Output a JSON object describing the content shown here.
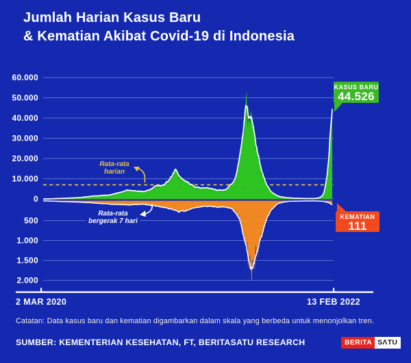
{
  "title": {
    "line1": "Jumlah Harian Kasus Baru",
    "line2": "& Kematian Akibat Covid-19 di Indonesia"
  },
  "colors": {
    "bg": "#1428b0",
    "grid": "#5b6fd6",
    "cases_fill": "#2ec81c",
    "cases_badge": "#3cb728",
    "deaths_fill": "#f78b1e",
    "deaths_badge": "#f24a1e",
    "avg_line": "#e9c53d",
    "ma_line": "#ffffff",
    "note_text": "#f3efe4",
    "logo_red": "#e6231c",
    "logo_text_dark": "#15151a"
  },
  "badges": {
    "cases": {
      "label": "KASUS BARU",
      "value": "44.526"
    },
    "deaths": {
      "label": "KEMATIAN",
      "value": "111"
    }
  },
  "annotations": {
    "daily_avg": {
      "line1": "Rata-rata",
      "line2": "harian"
    },
    "moving_avg": {
      "line1": "Rata-rata",
      "line2": "bergerak 7 hari"
    }
  },
  "footer": {
    "note": "Catatan: Data kasus baru dan kematian digambarkan dalam skala yang berbeda untuk menonjolkan tren.",
    "source": "SUMBER: KEMENTERIAN KESEHATAN, FT, BERITASATU RESEARCH",
    "logo": {
      "part1": "BERITA",
      "part2": "SΛTU"
    }
  },
  "chart_data": {
    "type": "area",
    "title": "Jumlah Harian Kasus Baru & Kematian Akibat Covid-19 di Indonesia",
    "x_range": [
      "2020-03-02",
      "2022-02-13"
    ],
    "x_tick_labels": [
      "2 MAR 2020",
      "13 FEB 2022"
    ],
    "grid": true,
    "y_axis_cases": {
      "range": [
        0,
        60000
      ],
      "ticks": [
        {
          "label": "60.000",
          "value": 60000
        },
        {
          "label": "50.000",
          "value": 50000
        },
        {
          "label": "40.000",
          "value": 40000
        },
        {
          "label": "30.000",
          "value": 30000
        },
        {
          "label": "20.000",
          "value": 20000
        },
        {
          "label": "10.000",
          "value": 10000
        },
        {
          "label": "0",
          "value": 0
        }
      ]
    },
    "y_axis_deaths": {
      "range": [
        0,
        2250
      ],
      "ticks": [
        {
          "label": "500",
          "value": 500
        },
        {
          "label": "1.000",
          "value": 1000
        },
        {
          "label": "1.500",
          "value": 1500
        },
        {
          "label": "2.000",
          "value": 2000
        }
      ]
    },
    "average_line": {
      "label": "Rata-rata harian",
      "value": 7000
    },
    "moving_average_label": "Rata-rata bergerak 7 hari",
    "series": [
      {
        "name": "Kasus Baru",
        "direction": "up",
        "last_value": 44526,
        "points": [
          [
            "2020-03-02",
            5
          ],
          [
            "2020-03-20",
            60
          ],
          [
            "2020-04-10",
            250
          ],
          [
            "2020-05-01",
            400
          ],
          [
            "2020-05-20",
            550
          ],
          [
            "2020-06-10",
            900
          ],
          [
            "2020-07-01",
            1400
          ],
          [
            "2020-07-20",
            1800
          ],
          [
            "2020-08-10",
            1900
          ],
          [
            "2020-09-01",
            2900
          ],
          [
            "2020-09-25",
            4300
          ],
          [
            "2020-10-15",
            4100
          ],
          [
            "2020-11-01",
            3600
          ],
          [
            "2020-11-20",
            4700
          ],
          [
            "2020-12-05",
            6800
          ],
          [
            "2020-12-20",
            6900
          ],
          [
            "2021-01-05",
            9000
          ],
          [
            "2021-01-16",
            13000
          ],
          [
            "2021-01-24",
            14200
          ],
          [
            "2021-02-05",
            10500
          ],
          [
            "2021-02-20",
            8500
          ],
          [
            "2021-03-10",
            6300
          ],
          [
            "2021-04-01",
            5400
          ],
          [
            "2021-04-20",
            5300
          ],
          [
            "2021-05-10",
            4500
          ],
          [
            "2021-05-20",
            4300
          ],
          [
            "2021-06-01",
            5800
          ],
          [
            "2021-06-13",
            8800
          ],
          [
            "2021-06-22",
            12500
          ],
          [
            "2021-07-01",
            21000
          ],
          [
            "2021-07-08",
            33000
          ],
          [
            "2021-07-15",
            50000
          ],
          [
            "2021-07-19",
            46000
          ],
          [
            "2021-07-25",
            43000
          ],
          [
            "2021-08-02",
            34000
          ],
          [
            "2021-08-10",
            26000
          ],
          [
            "2021-08-20",
            16000
          ],
          [
            "2021-09-01",
            8500
          ],
          [
            "2021-09-15",
            3700
          ],
          [
            "2021-10-01",
            1600
          ],
          [
            "2021-10-15",
            900
          ],
          [
            "2021-11-01",
            500
          ],
          [
            "2021-11-20",
            350
          ],
          [
            "2021-12-10",
            230
          ],
          [
            "2021-12-28",
            200
          ],
          [
            "2022-01-08",
            400
          ],
          [
            "2022-01-16",
            900
          ],
          [
            "2022-01-23",
            2700
          ],
          [
            "2022-01-29",
            8000
          ],
          [
            "2022-02-03",
            17000
          ],
          [
            "2022-02-07",
            27000
          ],
          [
            "2022-02-10",
            38000
          ],
          [
            "2022-02-13",
            44526
          ]
        ]
      },
      {
        "name": "Kematian",
        "direction": "down",
        "last_value": 111,
        "points": [
          [
            "2020-03-02",
            2
          ],
          [
            "2020-04-01",
            15
          ],
          [
            "2020-05-01",
            25
          ],
          [
            "2020-06-01",
            38
          ],
          [
            "2020-07-01",
            55
          ],
          [
            "2020-08-01",
            75
          ],
          [
            "2020-09-01",
            100
          ],
          [
            "2020-10-01",
            105
          ],
          [
            "2020-11-01",
            90
          ],
          [
            "2020-12-01",
            125
          ],
          [
            "2020-12-20",
            160
          ],
          [
            "2021-01-10",
            210
          ],
          [
            "2021-01-28",
            280
          ],
          [
            "2021-02-15",
            270
          ],
          [
            "2021-03-05",
            190
          ],
          [
            "2021-04-01",
            140
          ],
          [
            "2021-04-25",
            160
          ],
          [
            "2021-05-20",
            165
          ],
          [
            "2021-06-10",
            200
          ],
          [
            "2021-06-22",
            350
          ],
          [
            "2021-07-01",
            500
          ],
          [
            "2021-07-08",
            850
          ],
          [
            "2021-07-16",
            1250
          ],
          [
            "2021-07-22",
            1500
          ],
          [
            "2021-07-27",
            1800
          ],
          [
            "2021-08-03",
            1700
          ],
          [
            "2021-08-12",
            1350
          ],
          [
            "2021-08-22",
            900
          ],
          [
            "2021-09-03",
            500
          ],
          [
            "2021-09-15",
            230
          ],
          [
            "2021-10-01",
            80
          ],
          [
            "2021-10-15",
            35
          ],
          [
            "2021-11-01",
            14
          ],
          [
            "2021-12-01",
            8
          ],
          [
            "2022-01-01",
            6
          ],
          [
            "2022-01-15",
            10
          ],
          [
            "2022-01-25",
            22
          ],
          [
            "2022-02-03",
            45
          ],
          [
            "2022-02-08",
            70
          ],
          [
            "2022-02-13",
            111
          ]
        ]
      }
    ]
  }
}
